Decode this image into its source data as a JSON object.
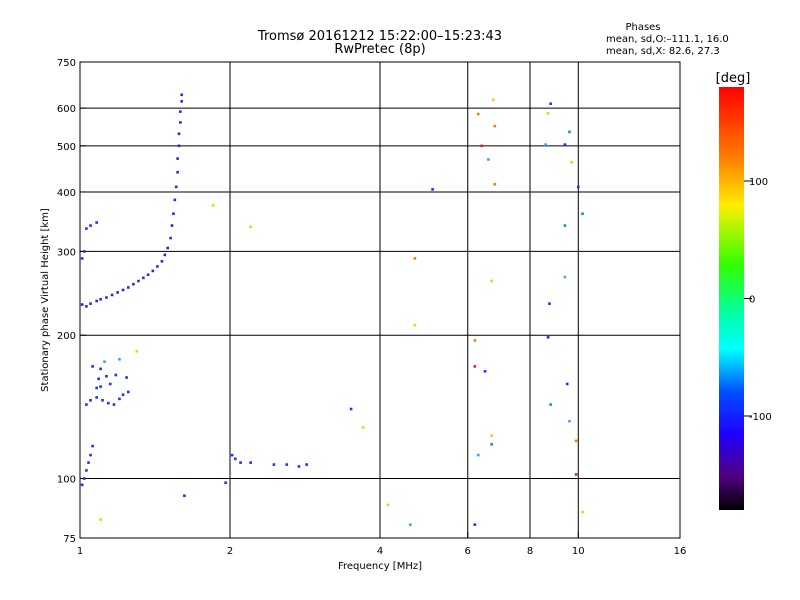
{
  "chart_data": {
    "type": "scatter",
    "title": "Tromsø 20161212 15:22:00–15:23:43",
    "subtitle": "RwPretec (8p)",
    "stats": {
      "heading": "Phases",
      "line1": "mean, sd,O:–111.1, 16.0",
      "line2": "mean, sd,X:  82.6, 27.3"
    },
    "xlabel": "Frequency [MHz]",
    "ylabel": "Stationary phase Virtual Height [km]",
    "xscale": "log",
    "yscale": "log",
    "xlim": [
      1,
      16
    ],
    "ylim": [
      75,
      750
    ],
    "xticks": [
      1,
      2,
      4,
      6,
      8,
      10,
      16
    ],
    "yticks": [
      75,
      100,
      200,
      300,
      400,
      500,
      600,
      750
    ],
    "xgrid": [
      2,
      4,
      6,
      8,
      10
    ],
    "ygrid": [
      100,
      200,
      300,
      400,
      500,
      600
    ],
    "grid": true,
    "colorbar": {
      "label": "[deg]",
      "range": [
        -180,
        180
      ],
      "ticks": [
        100,
        0,
        -100
      ]
    },
    "series": [
      {
        "color": "#3a1fe0",
        "points": [
          [
            1.01,
            232
          ],
          [
            1.03,
            230
          ],
          [
            1.05,
            233
          ],
          [
            1.08,
            236
          ],
          [
            1.1,
            238
          ],
          [
            1.13,
            240
          ],
          [
            1.16,
            243
          ],
          [
            1.19,
            246
          ],
          [
            1.22,
            249
          ],
          [
            1.25,
            252
          ],
          [
            1.28,
            256
          ],
          [
            1.31,
            260
          ],
          [
            1.34,
            264
          ],
          [
            1.37,
            268
          ],
          [
            1.4,
            273
          ],
          [
            1.43,
            279
          ],
          [
            1.46,
            286
          ],
          [
            1.48,
            295
          ],
          [
            1.5,
            305
          ],
          [
            1.52,
            320
          ],
          [
            1.53,
            340
          ],
          [
            1.54,
            360
          ],
          [
            1.55,
            385
          ],
          [
            1.56,
            410
          ],
          [
            1.57,
            440
          ],
          [
            1.57,
            470
          ],
          [
            1.58,
            500
          ],
          [
            1.58,
            530
          ],
          [
            1.59,
            560
          ],
          [
            1.59,
            590
          ],
          [
            1.6,
            620
          ],
          [
            1.6,
            640
          ]
        ]
      },
      {
        "color": "#1a30ff",
        "points": [
          [
            1.01,
            290
          ],
          [
            1.02,
            300
          ],
          [
            1.03,
            335
          ],
          [
            1.05,
            340
          ],
          [
            1.08,
            345
          ],
          [
            1.01,
            97
          ],
          [
            1.02,
            100
          ],
          [
            1.03,
            104
          ],
          [
            1.04,
            108
          ],
          [
            1.05,
            112
          ],
          [
            1.06,
            117
          ],
          [
            1.03,
            143
          ],
          [
            1.05,
            146
          ],
          [
            1.08,
            148
          ],
          [
            1.11,
            146
          ],
          [
            1.14,
            144
          ],
          [
            1.17,
            143
          ],
          [
            1.2,
            147
          ],
          [
            1.22,
            150
          ],
          [
            1.25,
            152
          ],
          [
            1.08,
            155
          ],
          [
            1.1,
            156
          ],
          [
            1.15,
            158
          ],
          [
            1.09,
            162
          ],
          [
            1.13,
            164
          ],
          [
            1.18,
            165
          ],
          [
            1.24,
            163
          ],
          [
            1.06,
            172
          ],
          [
            1.1,
            170
          ],
          [
            1.62,
            92
          ],
          [
            1.96,
            98
          ],
          [
            2.02,
            112
          ],
          [
            2.05,
            110
          ],
          [
            2.1,
            108
          ],
          [
            2.2,
            108
          ],
          [
            2.45,
            107
          ],
          [
            2.6,
            107
          ],
          [
            2.75,
            106
          ],
          [
            2.85,
            107
          ],
          [
            3.5,
            140
          ],
          [
            5.1,
            405
          ],
          [
            6.2,
            80
          ],
          [
            6.5,
            168
          ],
          [
            8.7,
            198
          ],
          [
            8.75,
            233
          ],
          [
            9.4,
            503
          ],
          [
            9.5,
            158
          ],
          [
            10,
            410
          ],
          [
            8.8,
            613
          ]
        ]
      },
      {
        "color": "#40a0ff",
        "points": [
          [
            1.12,
            176
          ],
          [
            1.2,
            178
          ],
          [
            4.6,
            80
          ],
          [
            6.3,
            112
          ],
          [
            6.6,
            468
          ],
          [
            8.6,
            503
          ],
          [
            9.4,
            265
          ],
          [
            9.6,
            132
          ]
        ]
      },
      {
        "color": "#ffcc00",
        "points": [
          [
            1.1,
            82
          ],
          [
            1.3,
            185
          ],
          [
            1.85,
            375
          ],
          [
            2.2,
            338
          ],
          [
            3.7,
            128
          ],
          [
            4.15,
            88
          ],
          [
            4.7,
            210
          ],
          [
            6.7,
            260
          ],
          [
            6.75,
            625
          ],
          [
            8.7,
            585
          ],
          [
            9.7,
            462
          ],
          [
            10.2,
            85
          ],
          [
            6.7,
            123
          ]
        ]
      },
      {
        "color": "#ff7a00",
        "points": [
          [
            4.7,
            290
          ],
          [
            6.2,
            195
          ],
          [
            6.8,
            415
          ],
          [
            6.8,
            550
          ],
          [
            9.9,
            120
          ],
          [
            6.3,
            583
          ]
        ]
      },
      {
        "color": "#00b050",
        "points": [
          [
            6.7,
            118
          ],
          [
            9.4,
            340
          ],
          [
            10.2,
            360
          ],
          [
            8.8,
            143
          ],
          [
            9.6,
            535
          ]
        ]
      },
      {
        "color": "#e02020",
        "points": [
          [
            6.2,
            172
          ],
          [
            9.9,
            102
          ],
          [
            6.4,
            500
          ]
        ]
      }
    ]
  }
}
